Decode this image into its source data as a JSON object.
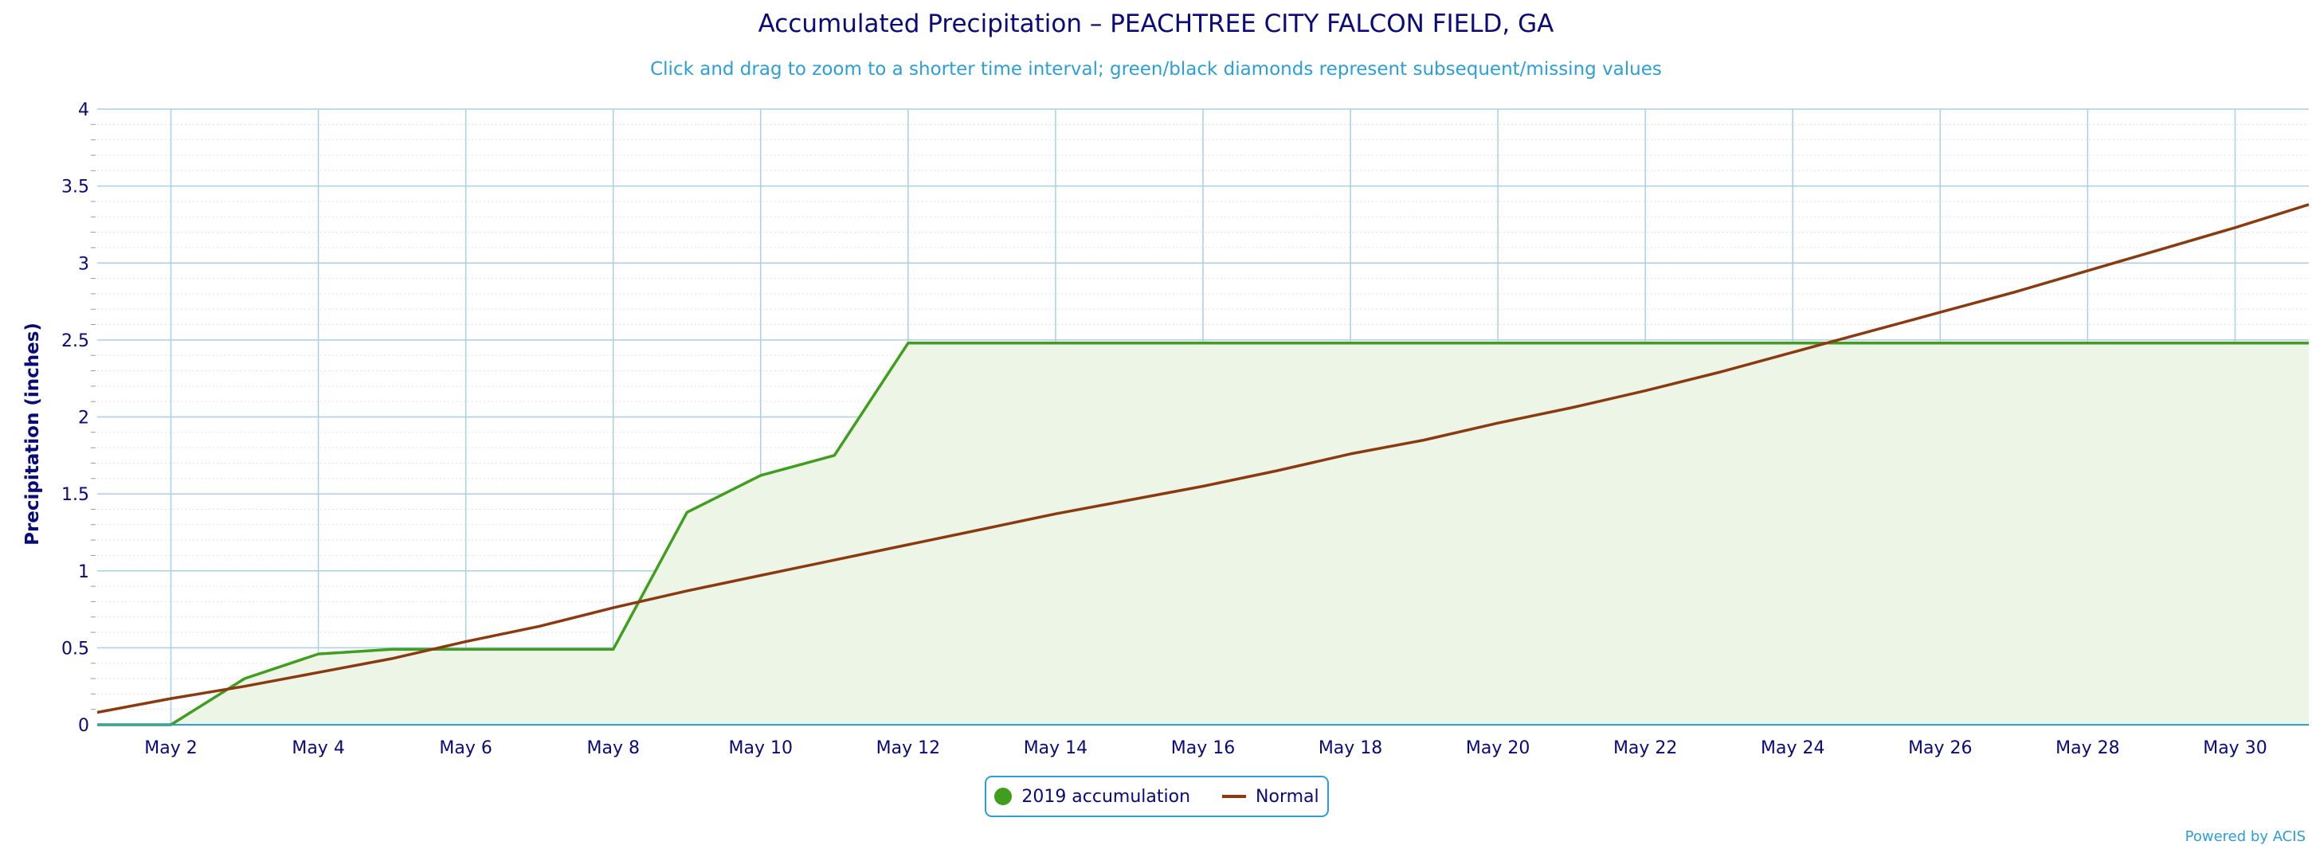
{
  "chart_data": {
    "type": "line",
    "title": "Accumulated Precipitation – PEACHTREE CITY FALCON FIELD, GA",
    "subtitle": "Click and drag to zoom to a shorter time interval; green/black diamonds represent subsequent/missing values",
    "ylabel": "Precipitation (inches)",
    "xlabel": "",
    "ylim": [
      0,
      4
    ],
    "xlim": [
      1,
      31
    ],
    "yticks": [
      "0",
      "0.5",
      "1",
      "1.5",
      "2",
      "2.5",
      "3",
      "3.5",
      "4"
    ],
    "xticks": [
      {
        "day": 2,
        "label": "May 2"
      },
      {
        "day": 4,
        "label": "May 4"
      },
      {
        "day": 6,
        "label": "May 6"
      },
      {
        "day": 8,
        "label": "May 8"
      },
      {
        "day": 10,
        "label": "May 10"
      },
      {
        "day": 12,
        "label": "May 12"
      },
      {
        "day": 14,
        "label": "May 14"
      },
      {
        "day": 16,
        "label": "May 16"
      },
      {
        "day": 18,
        "label": "May 18"
      },
      {
        "day": 20,
        "label": "May 20"
      },
      {
        "day": 22,
        "label": "May 22"
      },
      {
        "day": 24,
        "label": "May 24"
      },
      {
        "day": 26,
        "label": "May 26"
      },
      {
        "day": 28,
        "label": "May 28"
      },
      {
        "day": 30,
        "label": "May 30"
      }
    ],
    "grid": true,
    "legend_position": "bottom-center",
    "series": [
      {
        "name": "2019 accumulation",
        "color": "#3f9e1e",
        "fill": "#edf5e6",
        "x": [
          1,
          2,
          3,
          4,
          5,
          6,
          7,
          8,
          9,
          10,
          11,
          12,
          13,
          14,
          15,
          16,
          17,
          18,
          19,
          20,
          21,
          22,
          23,
          24,
          25,
          26,
          27,
          28,
          29,
          30,
          31
        ],
        "values": [
          0,
          0,
          0.3,
          0.46,
          0.49,
          0.49,
          0.49,
          0.49,
          1.38,
          1.62,
          1.75,
          2.48,
          2.48,
          2.48,
          2.48,
          2.48,
          2.48,
          2.48,
          2.48,
          2.48,
          2.48,
          2.48,
          2.48,
          2.48,
          2.48,
          2.48,
          2.48,
          2.48,
          2.48,
          2.48,
          2.48
        ]
      },
      {
        "name": "Normal",
        "color": "#8b3a0f",
        "x": [
          1,
          2,
          3,
          4,
          5,
          6,
          7,
          8,
          9,
          10,
          11,
          12,
          13,
          14,
          15,
          16,
          17,
          18,
          19,
          20,
          21,
          22,
          23,
          24,
          25,
          26,
          27,
          28,
          29,
          30,
          31
        ],
        "values": [
          0.08,
          0.17,
          0.25,
          0.34,
          0.43,
          0.54,
          0.64,
          0.76,
          0.87,
          0.97,
          1.07,
          1.17,
          1.27,
          1.37,
          1.46,
          1.55,
          1.65,
          1.76,
          1.85,
          1.96,
          2.06,
          2.17,
          2.29,
          2.42,
          2.55,
          2.68,
          2.81,
          2.95,
          3.09,
          3.23,
          3.38
        ]
      }
    ]
  },
  "legend": {
    "items": [
      {
        "label": "2019 accumulation",
        "color": "#3f9e1e"
      },
      {
        "label": "Normal",
        "color": "#8b3a0f"
      }
    ]
  },
  "credit": "Powered by ACIS"
}
